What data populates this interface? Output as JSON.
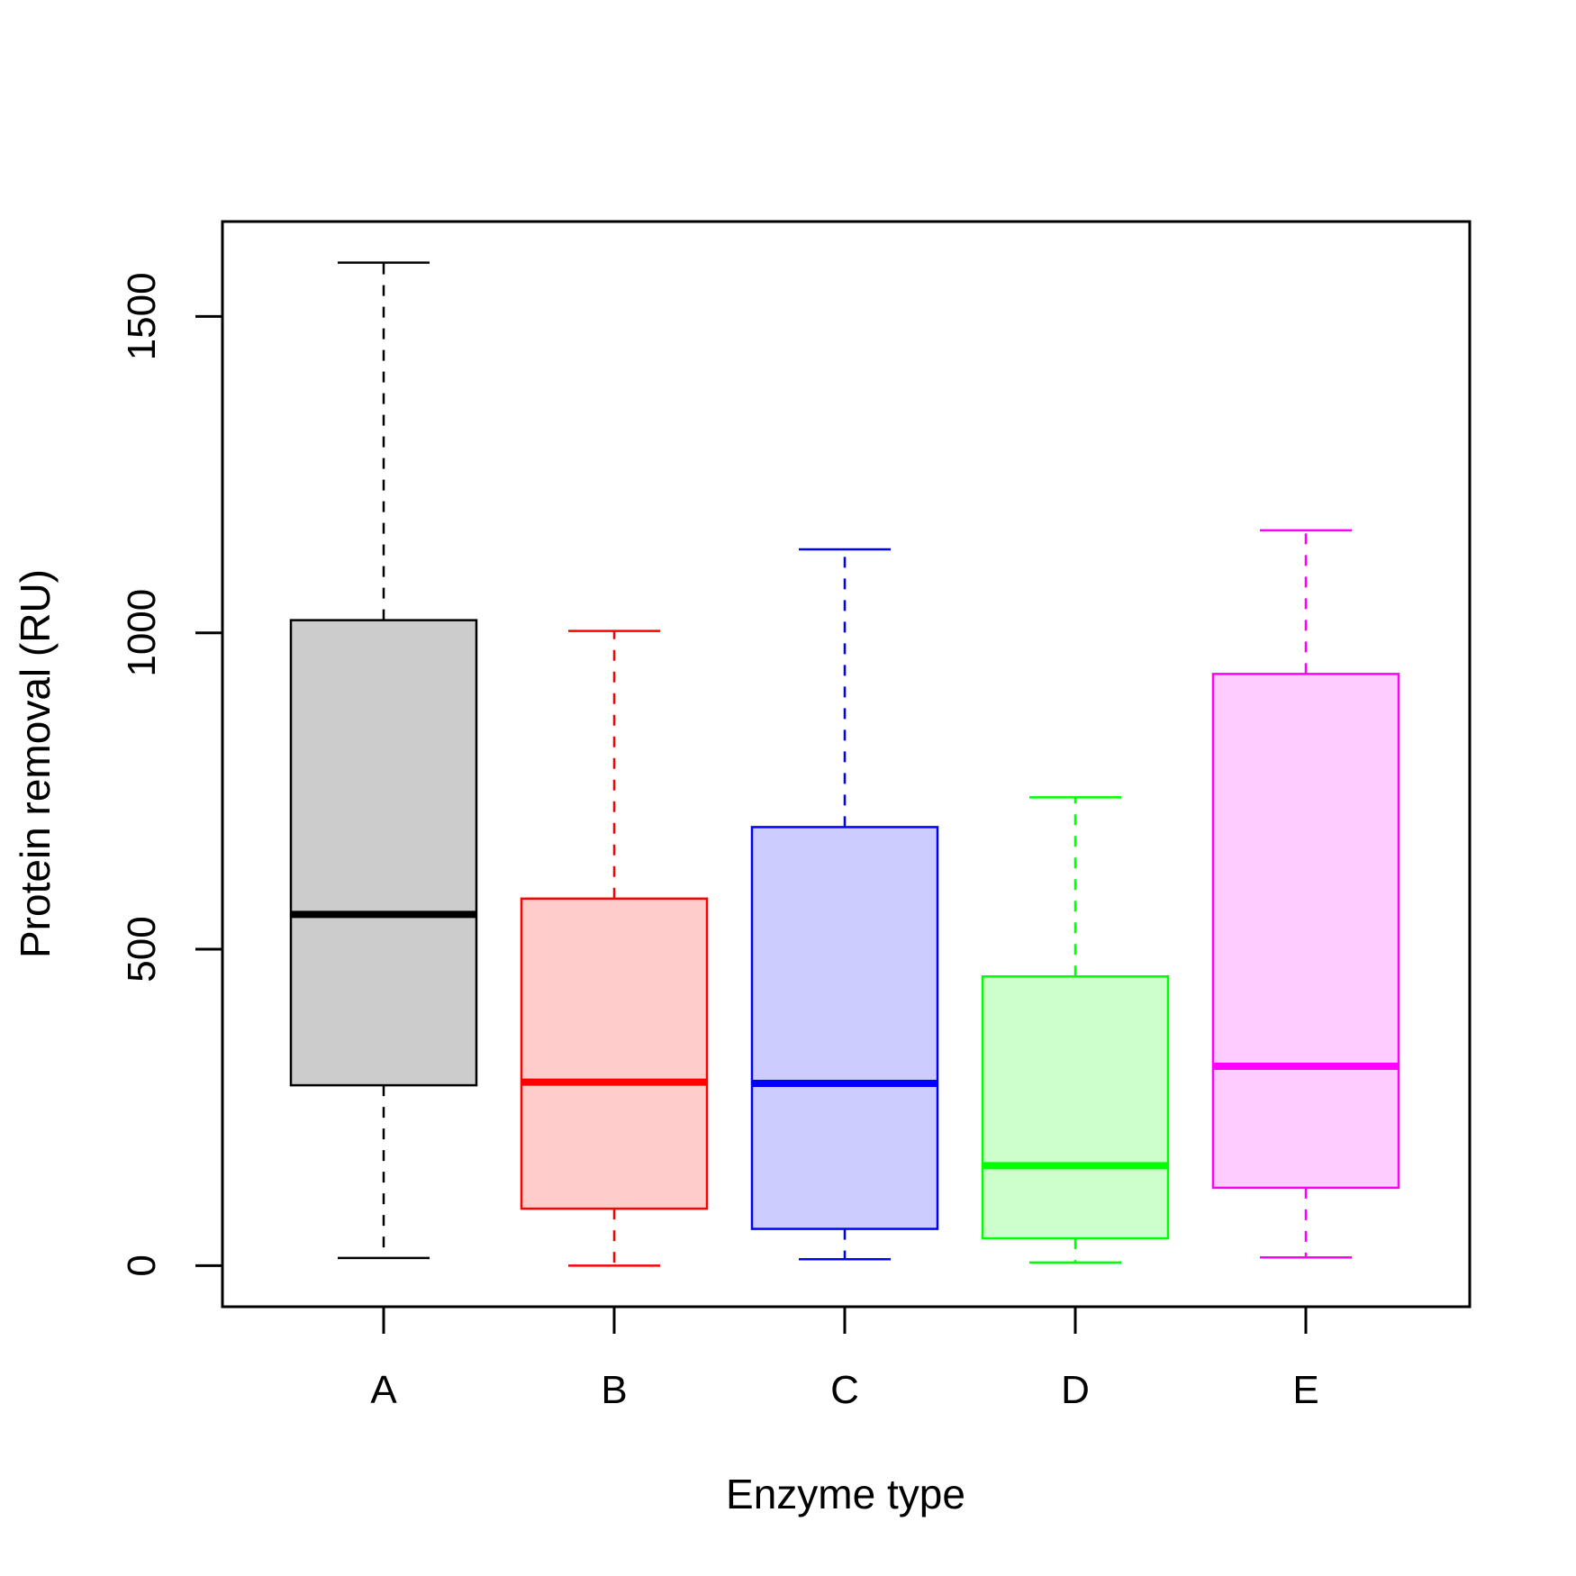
{
  "chart_data": {
    "type": "boxplot",
    "title": "",
    "xlabel": "Enzyme type",
    "ylabel": "Protein removal (RU)",
    "categories": [
      "A",
      "B",
      "C",
      "D",
      "E"
    ],
    "ylim": [
      -65,
      1650
    ],
    "yticks": [
      0,
      500,
      1000,
      1500
    ],
    "grid": false,
    "legend": "none",
    "series": [
      {
        "category": "A",
        "min": 12,
        "q1": 285,
        "median": 555,
        "q3": 1020,
        "max": 1585,
        "color": "#000000",
        "fill": "#cccccc"
      },
      {
        "category": "B",
        "min": 0,
        "q1": 90,
        "median": 290,
        "q3": 580,
        "max": 1003,
        "color": "#ff0000",
        "fill": "#ffcccc"
      },
      {
        "category": "C",
        "min": 10,
        "q1": 58,
        "median": 288,
        "q3": 693,
        "max": 1132,
        "color": "#0000ff",
        "fill": "#ccccff"
      },
      {
        "category": "D",
        "min": 5,
        "q1": 43,
        "median": 158,
        "q3": 457,
        "max": 740,
        "color": "#00ff00",
        "fill": "#ccffcc"
      },
      {
        "category": "E",
        "min": 13,
        "q1": 123,
        "median": 315,
        "q3": 935,
        "max": 1162,
        "color": "#ff00ff",
        "fill": "#ffccff"
      }
    ]
  }
}
